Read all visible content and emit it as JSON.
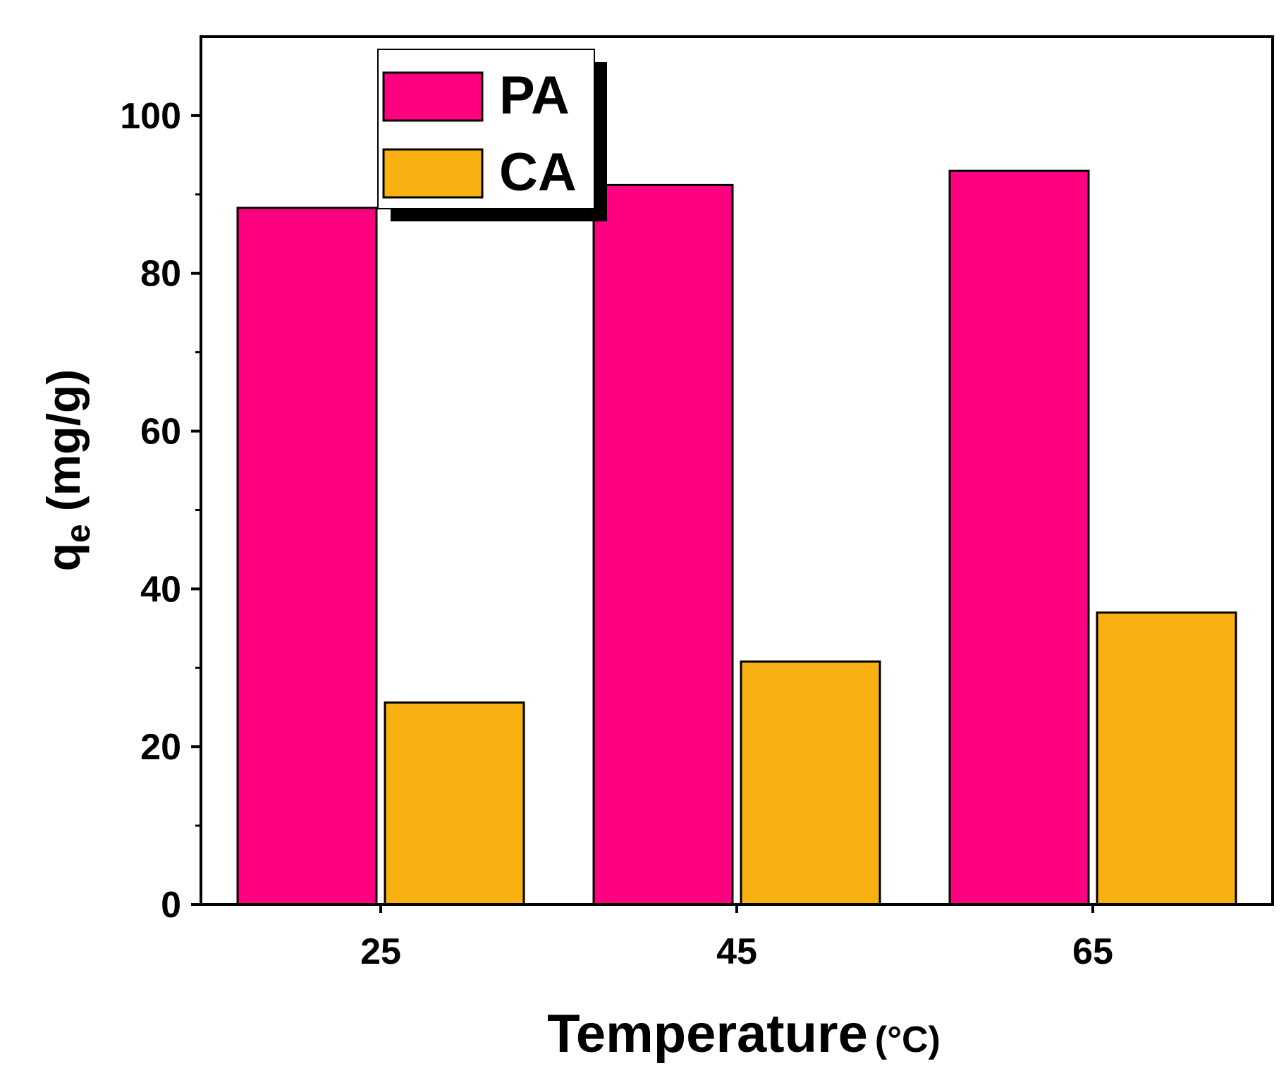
{
  "chart_data": {
    "type": "bar",
    "title": "",
    "xlabel": "Temperature",
    "xlabel_unit": "(°C)",
    "ylabel": "qe (mg/g)",
    "ylabel_main": "q",
    "ylabel_sub": "e",
    "ylabel_unit": "(mg/g)",
    "categories": [
      "25",
      "45",
      "65"
    ],
    "ylim": [
      0,
      110
    ],
    "yticks": [
      0,
      20,
      40,
      60,
      80,
      100
    ],
    "yminor": [
      10,
      30,
      50,
      70,
      90
    ],
    "series": [
      {
        "name": "PA",
        "color": "#FF0080",
        "values": [
          88.3,
          91.2,
          93.0
        ]
      },
      {
        "name": "CA",
        "color": "#F9B011",
        "values": [
          25.6,
          30.8,
          37.0
        ]
      }
    ],
    "legend_position": "top-left",
    "grid": false
  }
}
